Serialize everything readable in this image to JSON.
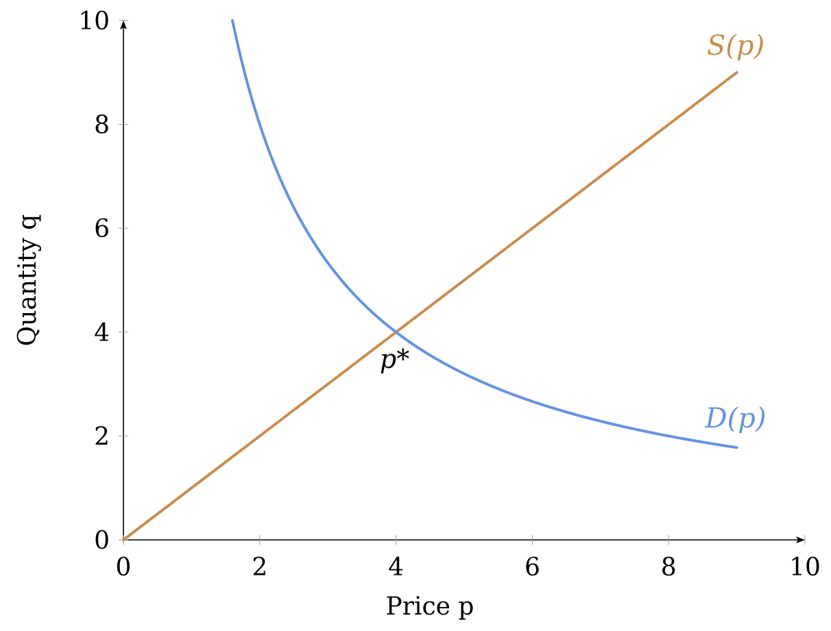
{
  "chart_data": {
    "type": "line",
    "xlabel": "Price p",
    "ylabel": "Quantity q",
    "xlim": [
      0,
      10
    ],
    "ylim": [
      0,
      10
    ],
    "xticks": [
      "0",
      "2",
      "4",
      "6",
      "8",
      "10"
    ],
    "yticks": [
      "0",
      "2",
      "4",
      "6",
      "8",
      "10"
    ],
    "grid": false,
    "series": [
      {
        "name": "S(p)",
        "color": "#c98d50",
        "formula": "q = p",
        "x": [
          0,
          9
        ],
        "y": [
          0,
          9
        ]
      },
      {
        "name": "D(p)",
        "color": "#6593dd",
        "formula": "q = 16 / p",
        "x": [
          1.6,
          1.8,
          2,
          2.5,
          3,
          3.5,
          4,
          4.5,
          5,
          5.5,
          6,
          6.5,
          7,
          7.5,
          8,
          8.5,
          9
        ],
        "y": [
          10,
          8.89,
          8,
          6.4,
          5.33,
          4.57,
          4,
          3.56,
          3.2,
          2.91,
          2.67,
          2.46,
          2.29,
          2.13,
          2,
          1.88,
          1.78
        ]
      }
    ],
    "annotations": [
      {
        "text": "p*",
        "x": 4,
        "y": 4
      }
    ]
  }
}
